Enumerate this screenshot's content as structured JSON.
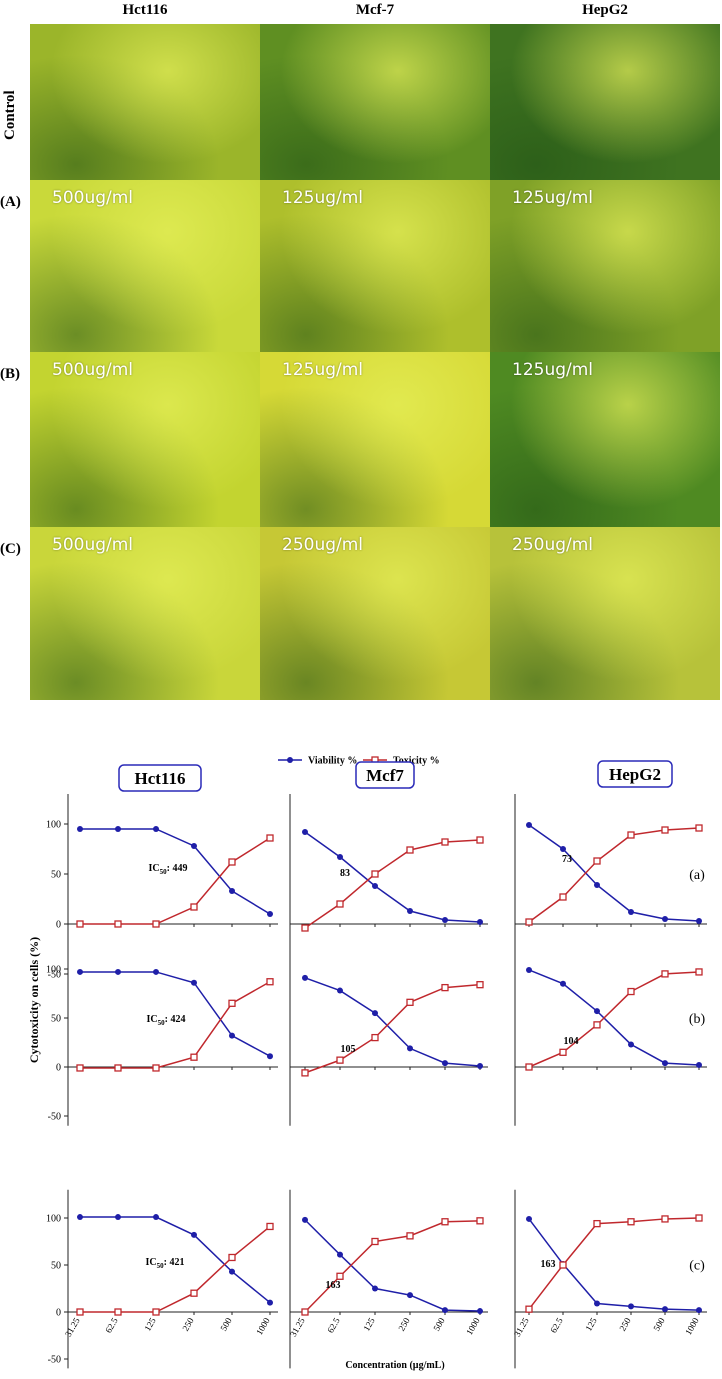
{
  "micrographs": {
    "columns": [
      "Hct116",
      "Mcf-7",
      "HepG2"
    ],
    "control_label": "Control",
    "rows": [
      {
        "label": "(A)",
        "doses": [
          "500ug/ml",
          "125ug/ml",
          "125ug/ml"
        ]
      },
      {
        "label": "(B)",
        "doses": [
          "500ug/ml",
          "125ug/ml",
          "125ug/ml"
        ]
      },
      {
        "label": "(C)",
        "doses": [
          "500ug/ml",
          "250ug/ml",
          "250ug/ml"
        ]
      }
    ]
  },
  "ylabel": "Cytotoxicity on cells (%)",
  "xlabel": "Concentration (µg/mL)",
  "chart_data": [
    {
      "type": "line",
      "title": "Hct116",
      "annotation": {
        "prefix": "IC",
        "sub": "50",
        "text": ": 449"
      },
      "categories": [
        null,
        null,
        null,
        null,
        null,
        null
      ],
      "series": [
        {
          "name": "Viability %",
          "color": "#1f1fa8",
          "values": [
            95,
            95,
            95,
            78,
            33,
            10
          ]
        },
        {
          "name": "Toxicity %",
          "color": "#c0282d",
          "values": [
            0,
            0,
            0,
            17,
            62,
            86
          ]
        }
      ],
      "ylim": [
        -60,
        130
      ],
      "yticks": [
        100,
        50,
        0,
        -50
      ]
    },
    {
      "type": "line",
      "title": "Mcf7",
      "annotation": {
        "text": "83"
      },
      "categories": [
        null,
        null,
        null,
        null,
        null,
        null
      ],
      "series": [
        {
          "color": "#1f1fa8",
          "values": [
            92,
            67,
            38,
            13,
            4,
            2
          ]
        },
        {
          "color": "#c0282d",
          "values": [
            -4,
            20,
            50,
            74,
            82,
            84
          ]
        }
      ],
      "ylim": [
        -60,
        130
      ]
    },
    {
      "type": "line",
      "title": "HepG2",
      "panel_label": "(a)",
      "annotation": {
        "text": "73"
      },
      "categories": [
        null,
        null,
        null,
        null,
        null,
        null
      ],
      "series": [
        {
          "color": "#1f1fa8",
          "values": [
            99,
            75,
            39,
            12,
            5,
            3
          ]
        },
        {
          "color": "#c0282d",
          "values": [
            2,
            27,
            63,
            89,
            94,
            96
          ]
        }
      ],
      "ylim": [
        -60,
        130
      ]
    },
    {
      "type": "line",
      "annotation": {
        "prefix": "IC",
        "sub": "50",
        "text": ": 424"
      },
      "categories": [
        null,
        null,
        null,
        null,
        null,
        null
      ],
      "series": [
        {
          "color": "#1f1fa8",
          "values": [
            97,
            97,
            97,
            86,
            32,
            11
          ]
        },
        {
          "color": "#c0282d",
          "values": [
            -1,
            -1,
            -1,
            10,
            65,
            87
          ]
        }
      ],
      "ylim": [
        -60,
        130
      ],
      "yticks": [
        100,
        50,
        0,
        -50
      ]
    },
    {
      "type": "line",
      "annotation": {
        "text": "105"
      },
      "categories": [
        null,
        null,
        null,
        null,
        null,
        null
      ],
      "series": [
        {
          "color": "#1f1fa8",
          "values": [
            91,
            78,
            55,
            19,
            4,
            1
          ]
        },
        {
          "color": "#c0282d",
          "values": [
            -6,
            7,
            30,
            66,
            81,
            84
          ]
        }
      ],
      "ylim": [
        -60,
        130
      ]
    },
    {
      "type": "line",
      "panel_label": "(b)",
      "annotation": {
        "text": "104"
      },
      "categories": [
        null,
        null,
        null,
        null,
        null,
        null
      ],
      "series": [
        {
          "color": "#1f1fa8",
          "values": [
            99,
            85,
            57,
            23,
            4,
            2
          ]
        },
        {
          "color": "#c0282d",
          "values": [
            0,
            15,
            43,
            77,
            95,
            97
          ]
        }
      ],
      "ylim": [
        -60,
        130
      ]
    },
    {
      "type": "line",
      "annotation": {
        "prefix": "IC",
        "sub": "50",
        "text": ": 421"
      },
      "categories": [
        "31.25",
        "62.5",
        "125",
        "250",
        "500",
        "1000"
      ],
      "series": [
        {
          "color": "#1f1fa8",
          "values": [
            101,
            101,
            101,
            82,
            43,
            10
          ]
        },
        {
          "color": "#c0282d",
          "values": [
            0,
            0,
            0,
            20,
            58,
            91
          ]
        }
      ],
      "ylim": [
        -60,
        130
      ],
      "yticks": [
        100,
        50,
        0,
        -50
      ]
    },
    {
      "type": "line",
      "annotation": {
        "text": "163"
      },
      "categories": [
        "31.25",
        "62.5",
        "125",
        "250",
        "500",
        "1000"
      ],
      "series": [
        {
          "color": "#1f1fa8",
          "values": [
            98,
            61,
            25,
            18,
            2,
            1
          ]
        },
        {
          "color": "#c0282d",
          "values": [
            0,
            38,
            75,
            81,
            96,
            97
          ]
        }
      ],
      "ylim": [
        -60,
        130
      ]
    },
    {
      "type": "line",
      "panel_label": "(c)",
      "annotation": {
        "text": "163"
      },
      "categories": [
        "31.25",
        "62.5",
        "125",
        "250",
        "500",
        "1000"
      ],
      "series": [
        {
          "color": "#1f1fa8",
          "values": [
            99,
            51,
            9,
            6,
            3,
            2
          ]
        },
        {
          "color": "#c0282d",
          "values": [
            3,
            50,
            94,
            96,
            99,
            100
          ]
        }
      ],
      "ylim": [
        -60,
        130
      ]
    }
  ]
}
